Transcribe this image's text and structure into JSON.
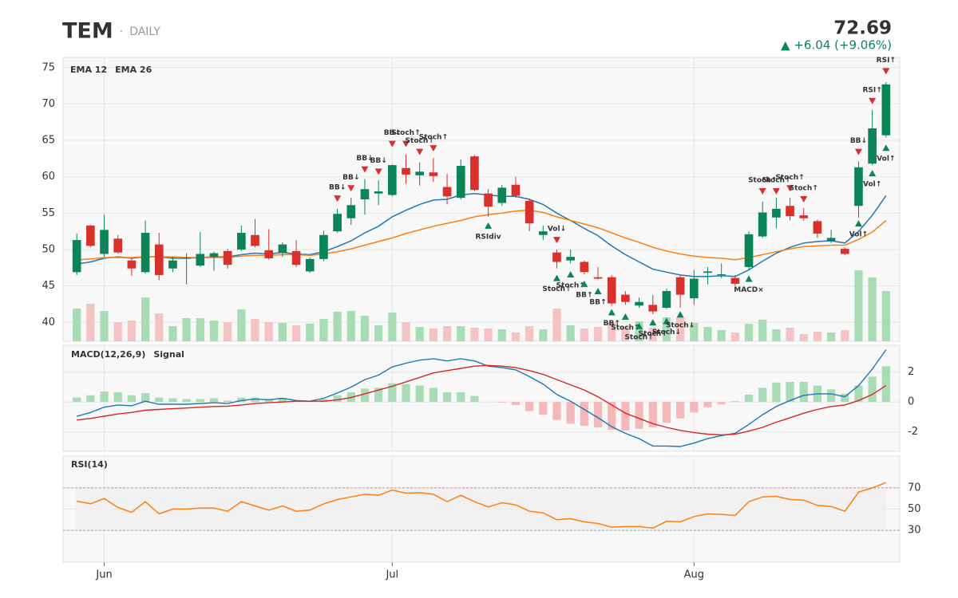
{
  "header": {
    "symbol": "TEM",
    "separator": "·",
    "interval": "DAILY",
    "last": 72.69,
    "change": "▲ +6.04  (+9.06%)"
  },
  "chart_data": [
    {
      "type": "candlestick",
      "xlim": [
        -1,
        60
      ],
      "xticks": [
        {
          "value": 2,
          "label": "Jun"
        },
        {
          "value": 23,
          "label": "Jul"
        },
        {
          "value": 45,
          "label": "Aug"
        }
      ],
      "ylim": [
        37.4,
        76.4
      ],
      "yticks": [
        40,
        45,
        50,
        55,
        60,
        65,
        70,
        75
      ],
      "grid": true,
      "up_color": "#0b8457",
      "down_color": "#d9302c",
      "open": [
        46.9,
        53.3,
        49.4,
        51.5,
        48.5,
        46.9,
        50.7,
        47.4,
        48.8,
        47.8,
        49.0,
        49.8,
        50.0,
        52.0,
        49.9,
        49.6,
        49.8,
        47.0,
        48.7,
        52.5,
        54.3,
        56.9,
        57.7,
        57.5,
        61.2,
        60.2,
        60.6,
        58.6,
        57.1,
        62.8,
        57.7,
        56.4,
        58.9,
        56.7,
        52.0,
        49.6,
        48.5,
        48.3,
        46.2,
        46.2,
        43.8,
        42.3,
        42.4,
        42.0,
        46.2,
        43.3,
        46.8,
        46.5,
        46.1,
        47.6,
        51.8,
        54.4,
        56.0,
        54.7,
        53.9,
        51.2,
        50.1,
        56.0,
        61.8,
        65.7
      ],
      "high": [
        52.2,
        53.4,
        54.8,
        52.0,
        48.8,
        54.0,
        52.3,
        49.0,
        49.5,
        52.4,
        49.7,
        50.1,
        53.3,
        54.2,
        52.8,
        51.0,
        51.3,
        48.9,
        52.6,
        55.6,
        57.1,
        59.7,
        59.5,
        61.7,
        63.1,
        62.0,
        62.6,
        60.4,
        62.4,
        63.0,
        58.3,
        58.9,
        60.0,
        57.0,
        53.3,
        50.0,
        50.0,
        48.5,
        47.6,
        46.5,
        44.3,
        43.4,
        43.8,
        44.6,
        46.5,
        47.2,
        47.6,
        48.1,
        46.5,
        52.5,
        56.6,
        57.1,
        57.1,
        55.7,
        54.1,
        52.7,
        50.3,
        62.1,
        69.2,
        73.0
      ],
      "low": [
        46.5,
        50.3,
        49.0,
        49.4,
        46.4,
        46.7,
        45.8,
        46.9,
        45.2,
        47.6,
        47.1,
        47.4,
        49.8,
        50.3,
        48.6,
        49.0,
        47.6,
        46.8,
        48.4,
        52.3,
        53.4,
        54.8,
        56.1,
        57.3,
        59.0,
        58.8,
        59.3,
        56.2,
        56.9,
        58.0,
        54.5,
        56.0,
        57.1,
        52.5,
        51.3,
        47.4,
        48.1,
        46.6,
        45.9,
        42.3,
        42.4,
        42.0,
        41.1,
        41.8,
        42.0,
        42.4,
        45.2,
        46.1,
        45.0,
        47.3,
        51.6,
        52.9,
        54.0,
        54.0,
        51.6,
        50.9,
        49.2,
        54.4,
        61.6,
        65.4
      ],
      "close": [
        51.3,
        50.5,
        52.7,
        49.6,
        47.4,
        52.3,
        46.5,
        48.5,
        48.9,
        49.4,
        49.5,
        47.9,
        52.3,
        50.5,
        48.8,
        50.7,
        47.9,
        48.7,
        52.0,
        54.9,
        56.1,
        58.3,
        58.0,
        61.6,
        60.3,
        60.7,
        60.1,
        57.3,
        61.5,
        58.2,
        55.9,
        58.5,
        57.4,
        53.6,
        52.5,
        48.3,
        49.0,
        46.9,
        46.0,
        42.6,
        42.8,
        42.8,
        41.5,
        44.3,
        43.8,
        46.0,
        47.0,
        46.6,
        45.3,
        52.1,
        55.1,
        55.6,
        54.6,
        54.3,
        52.2,
        51.6,
        49.4,
        61.3,
        66.65,
        72.69
      ],
      "volume": [
        4.1,
        4.7,
        3.8,
        2.4,
        2.6,
        5.5,
        3.5,
        1.9,
        2.9,
        2.9,
        2.6,
        2.4,
        4.0,
        2.8,
        2.4,
        2.3,
        2.0,
        2.2,
        2.8,
        3.7,
        3.8,
        3.2,
        2.0,
        3.6,
        2.4,
        1.8,
        1.6,
        1.9,
        1.9,
        1.7,
        1.6,
        1.5,
        1.1,
        1.9,
        1.5,
        4.1,
        2.0,
        1.6,
        1.8,
        2.4,
        1.8,
        2.5,
        1.7,
        3.0,
        3.0,
        2.3,
        1.8,
        1.4,
        1.1,
        2.2,
        2.7,
        1.5,
        1.7,
        0.9,
        1.2,
        1.1,
        1.4,
        8.9,
        8.0,
        6.3
      ],
      "volume_lim": [
        0,
        35.6
      ],
      "volume_up_color": "#a8dcb5",
      "volume_down_color": "#f4c4c4",
      "series": [
        {
          "name": "EMA 12",
          "color": "#1f77b4",
          "values": [
            48.0,
            48.3,
            48.8,
            49.0,
            48.8,
            49.0,
            49.0,
            48.8,
            48.8,
            48.9,
            49.0,
            49.0,
            49.3,
            49.5,
            49.4,
            49.6,
            49.4,
            49.3,
            49.7,
            50.4,
            51.2,
            52.3,
            53.2,
            54.5,
            55.4,
            56.2,
            56.8,
            56.9,
            57.5,
            57.7,
            57.5,
            57.3,
            57.3,
            56.9,
            56.2,
            55.0,
            54.0,
            52.9,
            51.9,
            50.5,
            49.3,
            48.3,
            47.3,
            46.9,
            46.5,
            46.3,
            46.3,
            46.4,
            46.3,
            47.2,
            48.4,
            49.5,
            50.3,
            50.9,
            51.1,
            51.2,
            50.9,
            52.5,
            54.7,
            57.4
          ]
        },
        {
          "name": "EMA 26",
          "color": "#ff7f0e",
          "values": [
            48.6,
            48.7,
            48.9,
            48.9,
            48.9,
            49.0,
            49.0,
            49.0,
            48.9,
            48.9,
            48.9,
            48.9,
            49.1,
            49.2,
            49.2,
            49.3,
            49.3,
            49.2,
            49.4,
            49.7,
            50.1,
            50.6,
            51.1,
            51.6,
            52.2,
            52.7,
            53.2,
            53.6,
            54.0,
            54.5,
            54.8,
            55.0,
            55.3,
            55.4,
            55.1,
            54.5,
            54.0,
            53.5,
            53.0,
            52.3,
            51.6,
            51.0,
            50.3,
            49.8,
            49.4,
            49.1,
            48.9,
            48.8,
            48.6,
            48.9,
            49.3,
            49.7,
            50.1,
            50.4,
            50.5,
            50.6,
            50.6,
            51.4,
            52.4,
            54.0
          ]
        }
      ],
      "signals": [
        {
          "i": 19,
          "label": "BB↓",
          "dir": "down",
          "price": 57.0
        },
        {
          "i": 20,
          "label": "BB↓",
          "dir": "down",
          "price": 58.4
        },
        {
          "i": 21,
          "label": "BB↓",
          "dir": "down",
          "price": 61.0
        },
        {
          "i": 22,
          "label": "BB↓",
          "dir": "down",
          "price": 60.7
        },
        {
          "i": 23,
          "label": "BB↓",
          "dir": "down",
          "price": 64.5
        },
        {
          "i": 24,
          "label": "Stoch↑",
          "dir": "down",
          "price": 64.5
        },
        {
          "i": 25,
          "label": "Stoch↑",
          "dir": "down",
          "price": 63.4
        },
        {
          "i": 26,
          "label": "Stoch↑",
          "dir": "down",
          "price": 63.9
        },
        {
          "i": 30,
          "label": "RSIdiv",
          "dir": "up",
          "price": 53.3
        },
        {
          "i": 35,
          "label": "Vol↓",
          "dir": "down",
          "price": 51.3
        },
        {
          "i": 35,
          "label": "Stoch↑",
          "dir": "up",
          "price": 46.1
        },
        {
          "i": 36,
          "label": "Stoch↑",
          "dir": "up",
          "price": 46.6
        },
        {
          "i": 37,
          "label": "BB↑",
          "dir": "up",
          "price": 45.3
        },
        {
          "i": 38,
          "label": "BB↑",
          "dir": "up",
          "price": 44.3
        },
        {
          "i": 39,
          "label": "BB↑",
          "dir": "up",
          "price": 41.4
        },
        {
          "i": 40,
          "label": "Stoch↑",
          "dir": "up",
          "price": 40.8
        },
        {
          "i": 41,
          "label": "Stoch↑",
          "dir": "up",
          "price": 39.5
        },
        {
          "i": 42,
          "label": "Stoch↑",
          "dir": "up",
          "price": 40.0
        },
        {
          "i": 43,
          "label": "Stoch↓",
          "dir": "up",
          "price": 40.2
        },
        {
          "i": 44,
          "label": "Stoch↓",
          "dir": "up",
          "price": 41.1
        },
        {
          "i": 49,
          "label": "MACD×",
          "dir": "up",
          "price": 46.0
        },
        {
          "i": 50,
          "label": "Stoch↑",
          "dir": "down",
          "price": 58.0
        },
        {
          "i": 51,
          "label": "Stoch↑",
          "dir": "down",
          "price": 58.0
        },
        {
          "i": 52,
          "label": "Stoch↑",
          "dir": "down",
          "price": 58.4
        },
        {
          "i": 53,
          "label": "Stoch↑",
          "dir": "down",
          "price": 56.9
        },
        {
          "i": 57,
          "label": "BB↓",
          "dir": "down",
          "price": 63.4
        },
        {
          "i": 57,
          "label": "Vol↑",
          "dir": "up",
          "price": 53.6
        },
        {
          "i": 58,
          "label": "RSI↑",
          "dir": "down",
          "price": 70.4
        },
        {
          "i": 58,
          "label": "Vol↑",
          "dir": "up",
          "price": 60.5
        },
        {
          "i": 59,
          "label": "RSI↑",
          "dir": "down",
          "price": 74.5
        },
        {
          "i": 59,
          "label": "Vol↑",
          "dir": "up",
          "price": 64.0
        }
      ]
    },
    {
      "type": "macd",
      "ylim": [
        -3.3,
        3.8
      ],
      "yticks": [
        -2,
        0,
        2
      ],
      "grid": true,
      "histogram": {
        "up_color": "#a8dcb5",
        "down_color": "#f4b8b8",
        "values": [
          0.3,
          0.45,
          0.7,
          0.65,
          0.45,
          0.6,
          0.3,
          0.25,
          0.2,
          0.2,
          0.25,
          0.1,
          0.3,
          0.3,
          0.2,
          0.25,
          0.1,
          0.05,
          0.2,
          0.45,
          0.65,
          0.9,
          0.95,
          1.25,
          1.2,
          1.1,
          0.95,
          0.65,
          0.65,
          0.4,
          0.0,
          -0.05,
          -0.2,
          -0.6,
          -0.85,
          -1.2,
          -1.45,
          -1.6,
          -1.7,
          -1.85,
          -1.9,
          -1.8,
          -1.7,
          -1.4,
          -1.1,
          -0.7,
          -0.35,
          -0.15,
          0.05,
          0.5,
          0.95,
          1.3,
          1.35,
          1.35,
          1.1,
          0.85,
          0.55,
          1.1,
          1.7,
          2.4
        ]
      },
      "series": [
        {
          "name": "MACD(12,26,9)",
          "color": "#1f77b4",
          "values": [
            -0.96,
            -0.7,
            -0.35,
            -0.2,
            -0.25,
            0.05,
            -0.15,
            -0.15,
            -0.15,
            -0.1,
            -0.05,
            -0.1,
            0.1,
            0.2,
            0.15,
            0.25,
            0.1,
            0.05,
            0.25,
            0.6,
            1.0,
            1.5,
            1.8,
            2.35,
            2.6,
            2.8,
            2.9,
            2.75,
            2.9,
            2.75,
            2.4,
            2.3,
            2.15,
            1.7,
            1.2,
            0.5,
            0.05,
            -0.5,
            -1.05,
            -1.65,
            -2.1,
            -2.45,
            -2.95,
            -2.95,
            -2.98,
            -2.75,
            -2.45,
            -2.25,
            -2.1,
            -1.5,
            -0.85,
            -0.3,
            0.1,
            0.45,
            0.55,
            0.55,
            0.35,
            1.1,
            2.2,
            3.5
          ]
        },
        {
          "name": "Signal",
          "color": "#d62728",
          "values": [
            -1.2,
            -1.1,
            -0.95,
            -0.8,
            -0.7,
            -0.55,
            -0.5,
            -0.45,
            -0.4,
            -0.35,
            -0.3,
            -0.28,
            -0.2,
            -0.1,
            -0.05,
            0.0,
            0.05,
            0.05,
            0.05,
            0.15,
            0.3,
            0.55,
            0.8,
            1.05,
            1.35,
            1.65,
            1.95,
            2.1,
            2.25,
            2.4,
            2.45,
            2.4,
            2.3,
            2.1,
            1.85,
            1.5,
            1.15,
            0.8,
            0.35,
            -0.2,
            -0.75,
            -1.1,
            -1.45,
            -1.7,
            -1.9,
            -2.05,
            -2.15,
            -2.2,
            -2.15,
            -1.95,
            -1.7,
            -1.35,
            -1.05,
            -0.75,
            -0.5,
            -0.3,
            -0.2,
            0.1,
            0.5,
            1.1
          ]
        }
      ]
    },
    {
      "type": "rsi",
      "ylim": [
        0,
        100
      ],
      "yticks": [
        30,
        50,
        70
      ],
      "levels": [
        {
          "value": 70,
          "color": "#e06666"
        },
        {
          "value": 30,
          "color": "#5aaa88"
        }
      ],
      "series": [
        {
          "name": "RSI(14)",
          "color": "#ff7f0e",
          "values": [
            57.5,
            55,
            60,
            51.5,
            47,
            57,
            45.5,
            50,
            50,
            51,
            51,
            48,
            57,
            53,
            49,
            53,
            48,
            49,
            55,
            59,
            61.5,
            64,
            63,
            68,
            65,
            65.5,
            64,
            57,
            63,
            57,
            52,
            56,
            54,
            48,
            46.5,
            40,
            41,
            38,
            36.5,
            33,
            33.5,
            33.5,
            32,
            38.5,
            38,
            43,
            45.5,
            45,
            44,
            57,
            61.5,
            62,
            59,
            58.5,
            53.5,
            52.5,
            48,
            66,
            70,
            75
          ]
        }
      ]
    }
  ]
}
